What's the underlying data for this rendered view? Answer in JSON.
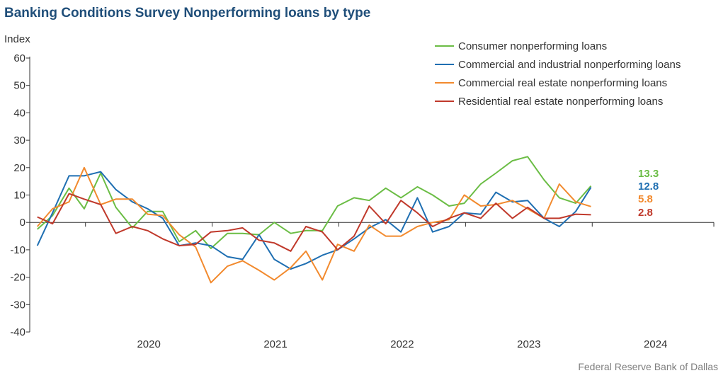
{
  "chart_data": {
    "type": "line",
    "title": "Banking Conditions Survey Nonperforming loans by type",
    "ylabel": "Index",
    "ylim": [
      -40,
      60
    ],
    "yticks": [
      60,
      50,
      40,
      30,
      20,
      10,
      0,
      -10,
      -20,
      -30,
      -40
    ],
    "year_labels": [
      "2020",
      "2021",
      "2022",
      "2023",
      "2024"
    ],
    "x_start": 2019.5,
    "x_end": 2024.9,
    "grid": false,
    "legend_position": "top-right",
    "source": "Federal Reserve Bank of Dallas",
    "series": [
      {
        "name": "Consumer nonperforming loans",
        "color": "#6bbd45",
        "end_label": "13.3",
        "points": [
          [
            2019.56,
            -2.5
          ],
          [
            2019.68,
            2.5
          ],
          [
            2019.81,
            12.5
          ],
          [
            2019.93,
            5
          ],
          [
            2020.06,
            18
          ],
          [
            2020.18,
            5.5
          ],
          [
            2020.31,
            -2
          ],
          [
            2020.43,
            4
          ],
          [
            2020.55,
            4
          ],
          [
            2020.68,
            -7
          ],
          [
            2020.81,
            -3
          ],
          [
            2020.93,
            -9.5
          ],
          [
            2021.06,
            -4
          ],
          [
            2021.18,
            -4
          ],
          [
            2021.31,
            -4.5
          ],
          [
            2021.43,
            0
          ],
          [
            2021.56,
            -4
          ],
          [
            2021.68,
            -3
          ],
          [
            2021.81,
            -3
          ],
          [
            2021.93,
            6
          ],
          [
            2022.06,
            9
          ],
          [
            2022.18,
            8
          ],
          [
            2022.31,
            12.5
          ],
          [
            2022.43,
            9
          ],
          [
            2022.56,
            13
          ],
          [
            2022.68,
            10
          ],
          [
            2022.81,
            6
          ],
          [
            2022.93,
            7
          ],
          [
            2023.06,
            14
          ],
          [
            2023.18,
            18
          ],
          [
            2023.31,
            22.5
          ],
          [
            2023.43,
            24
          ],
          [
            2023.56,
            15.5
          ],
          [
            2023.68,
            9
          ],
          [
            2023.81,
            7
          ],
          [
            2023.93,
            13.3
          ]
        ]
      },
      {
        "name": "Commercial and industrial nonperforming loans",
        "color": "#1f6fb2",
        "end_label": "12.8",
        "points": [
          [
            2019.56,
            -8.5
          ],
          [
            2019.68,
            3.5
          ],
          [
            2019.81,
            17
          ],
          [
            2019.93,
            17
          ],
          [
            2020.06,
            18.5
          ],
          [
            2020.18,
            12
          ],
          [
            2020.31,
            7.5
          ],
          [
            2020.43,
            5
          ],
          [
            2020.55,
            1.5
          ],
          [
            2020.68,
            -8.5
          ],
          [
            2020.81,
            -7.5
          ],
          [
            2020.93,
            -8.5
          ],
          [
            2021.06,
            -12.5
          ],
          [
            2021.18,
            -13.5
          ],
          [
            2021.31,
            -4.5
          ],
          [
            2021.43,
            -13.5
          ],
          [
            2021.56,
            -17
          ],
          [
            2021.68,
            -15
          ],
          [
            2021.81,
            -12
          ],
          [
            2021.93,
            -10
          ],
          [
            2022.06,
            -6
          ],
          [
            2022.18,
            -2
          ],
          [
            2022.31,
            1
          ],
          [
            2022.43,
            -3.5
          ],
          [
            2022.56,
            9
          ],
          [
            2022.68,
            -3.5
          ],
          [
            2022.81,
            -1.5
          ],
          [
            2022.93,
            3.5
          ],
          [
            2023.06,
            3
          ],
          [
            2023.18,
            11
          ],
          [
            2023.31,
            7.5
          ],
          [
            2023.43,
            8
          ],
          [
            2023.56,
            1.5
          ],
          [
            2023.68,
            -1.5
          ],
          [
            2023.81,
            4
          ],
          [
            2023.93,
            12.8
          ]
        ]
      },
      {
        "name": "Commercial real estate nonperforming loans",
        "color": "#f28a2e",
        "end_label": "5.8",
        "points": [
          [
            2019.56,
            -1.5
          ],
          [
            2019.68,
            5
          ],
          [
            2019.81,
            7.5
          ],
          [
            2019.93,
            20
          ],
          [
            2020.06,
            6.5
          ],
          [
            2020.18,
            8.5
          ],
          [
            2020.31,
            8.5
          ],
          [
            2020.43,
            3
          ],
          [
            2020.55,
            2.5
          ],
          [
            2020.68,
            -4.5
          ],
          [
            2020.81,
            -9
          ],
          [
            2020.93,
            -22
          ],
          [
            2021.06,
            -16
          ],
          [
            2021.18,
            -14
          ],
          [
            2021.31,
            -17.5
          ],
          [
            2021.43,
            -21
          ],
          [
            2021.56,
            -16.5
          ],
          [
            2021.68,
            -10.5
          ],
          [
            2021.81,
            -21
          ],
          [
            2021.93,
            -8
          ],
          [
            2022.06,
            -10.5
          ],
          [
            2022.18,
            -1
          ],
          [
            2022.31,
            -5
          ],
          [
            2022.43,
            -5
          ],
          [
            2022.56,
            -1.5
          ],
          [
            2022.68,
            0
          ],
          [
            2022.81,
            1
          ],
          [
            2022.93,
            10
          ],
          [
            2023.06,
            6
          ],
          [
            2023.18,
            6.5
          ],
          [
            2023.31,
            8
          ],
          [
            2023.43,
            5
          ],
          [
            2023.56,
            1.5
          ],
          [
            2023.68,
            14
          ],
          [
            2023.81,
            7.5
          ],
          [
            2023.93,
            5.8
          ]
        ]
      },
      {
        "name": "Residential real estate nonperforming loans",
        "color": "#c0392b",
        "end_label": "2.8",
        "points": [
          [
            2019.56,
            2
          ],
          [
            2019.68,
            -0.5
          ],
          [
            2019.81,
            10.5
          ],
          [
            2019.93,
            8.5
          ],
          [
            2020.06,
            6.5
          ],
          [
            2020.18,
            -4
          ],
          [
            2020.31,
            -1.5
          ],
          [
            2020.43,
            -3
          ],
          [
            2020.55,
            -6
          ],
          [
            2020.68,
            -8.5
          ],
          [
            2020.81,
            -8
          ],
          [
            2020.93,
            -3.5
          ],
          [
            2021.06,
            -3
          ],
          [
            2021.18,
            -2
          ],
          [
            2021.31,
            -6.5
          ],
          [
            2021.43,
            -7.5
          ],
          [
            2021.56,
            -10.5
          ],
          [
            2021.68,
            -1.5
          ],
          [
            2021.81,
            -3.5
          ],
          [
            2021.93,
            -10
          ],
          [
            2022.06,
            -5
          ],
          [
            2022.18,
            6
          ],
          [
            2022.31,
            -0.5
          ],
          [
            2022.43,
            8
          ],
          [
            2022.56,
            3.5
          ],
          [
            2022.68,
            -1.5
          ],
          [
            2022.81,
            1.5
          ],
          [
            2022.93,
            3.5
          ],
          [
            2023.06,
            1.5
          ],
          [
            2023.18,
            7
          ],
          [
            2023.31,
            1.5
          ],
          [
            2023.43,
            5.5
          ],
          [
            2023.56,
            1.5
          ],
          [
            2023.68,
            1.5
          ],
          [
            2023.81,
            3
          ],
          [
            2023.93,
            2.8
          ]
        ]
      }
    ]
  }
}
